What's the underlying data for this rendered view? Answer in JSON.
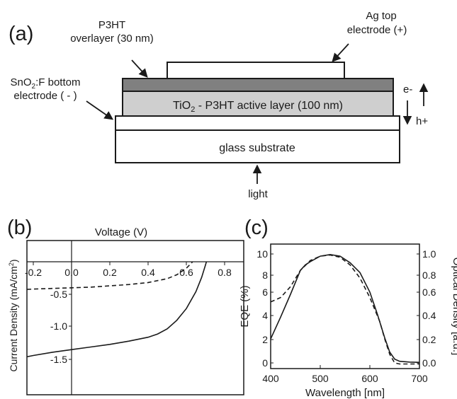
{
  "panel_a": {
    "panel_label": "(a)",
    "labels": {
      "p3ht_line1": "P3HT",
      "p3ht_line2": "overlayer (30 nm)",
      "ag_line1": "Ag top",
      "ag_line2": "electrode (+)",
      "sno2_prefix": "SnO",
      "sno2_sub": "2",
      "sno2_suffix": ":F bottom",
      "sno2_line2": "electrode ( - )",
      "active_prefix": "TiO",
      "active_sub": "2",
      "active_suffix": " - P3HT active layer (100 nm)",
      "glass": "glass substrate",
      "light": "light",
      "electron": "e-",
      "hole": "h+"
    },
    "colors": {
      "overlayer": "#808080",
      "active_layer": "#cfcfcf",
      "white": "#ffffff",
      "stroke": "#1a1a1a"
    }
  },
  "panel_b": {
    "panel_label": "(b)",
    "x_axis_title": "Voltage (V)",
    "y_axis_title_prefix": "Current Density (mA/cm",
    "y_axis_title_sup": "2",
    "y_axis_title_suffix": ")",
    "x_tick_labels": [
      "-0.2",
      "0.0",
      "0.2",
      "0.4",
      "0.6",
      "0.8"
    ],
    "y_tick_labels": [
      "-0.5",
      "-1.0",
      "-1.5"
    ]
  },
  "panel_c": {
    "panel_label": "(c)",
    "x_axis_title": "Wavelength [nm]",
    "y_left_title": "EQE (%)",
    "y_right_title": "Optical Density [a.u.]",
    "x_tick_labels": [
      "400",
      "500",
      "600",
      "700"
    ],
    "y_left_tick_labels": [
      "0",
      "2",
      "4",
      "6",
      "8",
      "10"
    ],
    "y_right_tick_labels": [
      "0.0",
      "0.2",
      "0.4",
      "0.6",
      "0.8",
      "1.0"
    ]
  },
  "chart_data": [
    {
      "type": "line",
      "x_range": [
        -0.27,
        0.87
      ],
      "y_range": [
        -1.75,
        0.35
      ],
      "series": [
        {
          "style": "solid",
          "x": [
            -0.27,
            -0.2,
            -0.1,
            0.0,
            0.1,
            0.2,
            0.3,
            0.4,
            0.45,
            0.5,
            0.55,
            0.6,
            0.65,
            0.68,
            0.7,
            0.72,
            0.74
          ],
          "y": [
            -1.48,
            -1.44,
            -1.39,
            -1.35,
            -1.31,
            -1.27,
            -1.22,
            -1.16,
            -1.11,
            -1.03,
            -0.9,
            -0.72,
            -0.46,
            -0.24,
            -0.05,
            0.15,
            0.38
          ]
        },
        {
          "style": "dashed",
          "x": [
            -0.27,
            -0.2,
            -0.1,
            0.0,
            0.1,
            0.2,
            0.3,
            0.4,
            0.5,
            0.55,
            0.6,
            0.63,
            0.66,
            0.69
          ],
          "y": [
            -0.43,
            -0.42,
            -0.41,
            -0.4,
            -0.39,
            -0.37,
            -0.35,
            -0.32,
            -0.26,
            -0.2,
            -0.1,
            -0.01,
            0.12,
            0.27
          ]
        }
      ]
    },
    {
      "type": "line",
      "x_range": [
        400,
        700
      ],
      "ylim_left": [
        0,
        10.5
      ],
      "ylim_right": [
        0,
        1.05
      ],
      "series": [
        {
          "style": "solid",
          "axis": "left",
          "x": [
            400,
            420,
            440,
            460,
            470,
            480,
            500,
            520,
            540,
            560,
            580,
            600,
            615,
            630,
            640,
            650,
            660,
            680,
            700
          ],
          "y": [
            2.2,
            4.2,
            6.3,
            8.5,
            9.0,
            9.3,
            9.8,
            9.95,
            9.8,
            9.2,
            8.3,
            6.5,
            4.5,
            2.3,
            1.0,
            0.35,
            0.15,
            0.08,
            0.05
          ]
        },
        {
          "style": "dashed",
          "axis": "right",
          "x": [
            400,
            420,
            440,
            460,
            480,
            500,
            520,
            540,
            560,
            580,
            600,
            620,
            630,
            640,
            650,
            660,
            680,
            700
          ],
          "y": [
            0.56,
            0.6,
            0.7,
            0.85,
            0.94,
            0.98,
            0.99,
            0.97,
            0.9,
            0.78,
            0.6,
            0.38,
            0.22,
            0.08,
            0.0,
            -0.01,
            -0.01,
            -0.01
          ]
        }
      ]
    }
  ]
}
